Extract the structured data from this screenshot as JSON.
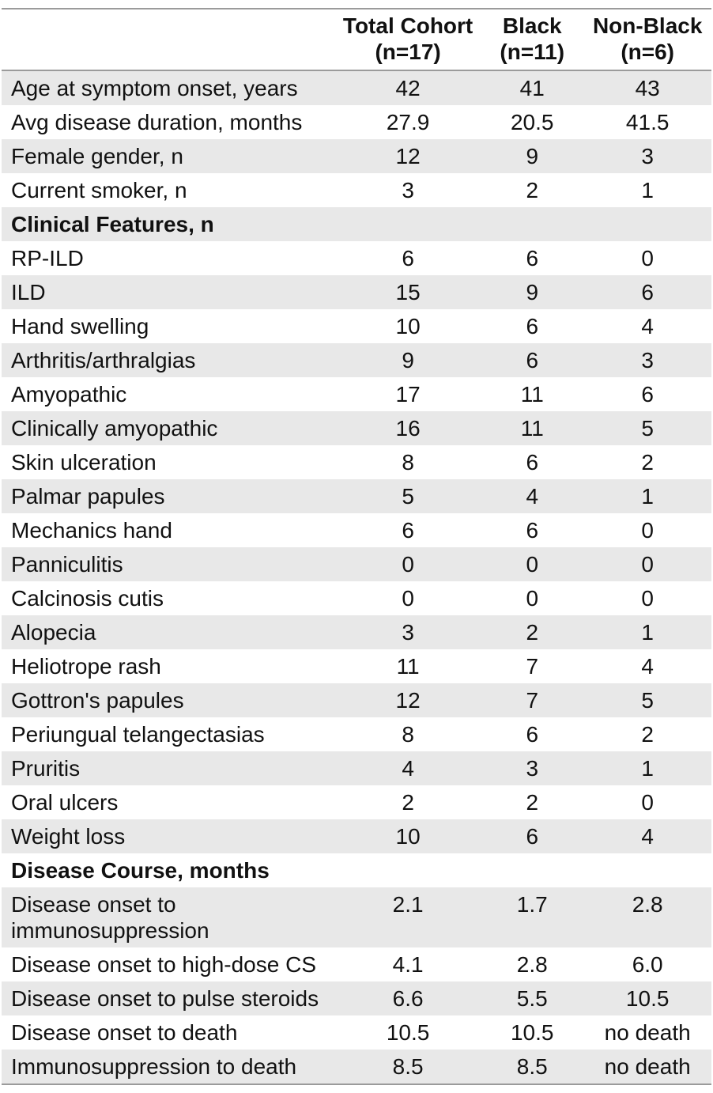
{
  "chart_data": {
    "type": "table",
    "columns": [
      {
        "line1": "",
        "line2": ""
      },
      {
        "line1": "Total Cohort",
        "line2": "(n=17)"
      },
      {
        "line1": "Black",
        "line2": "(n=11)"
      },
      {
        "line1": "Non-Black",
        "line2": "(n=6)"
      }
    ],
    "rows": [
      {
        "type": "data",
        "label": "Age at symptom onset, years",
        "values": [
          "42",
          "41",
          "43"
        ]
      },
      {
        "type": "data",
        "label": "Avg disease duration, months",
        "values": [
          "27.9",
          "20.5",
          "41.5"
        ]
      },
      {
        "type": "data",
        "label": "Female gender, n",
        "values": [
          "12",
          "9",
          "3"
        ]
      },
      {
        "type": "data",
        "label": "Current smoker, n",
        "values": [
          "3",
          "2",
          "1"
        ]
      },
      {
        "type": "section",
        "label": "Clinical Features, n",
        "values": [
          "",
          "",
          ""
        ]
      },
      {
        "type": "data",
        "label": "RP-ILD",
        "values": [
          "6",
          "6",
          "0"
        ]
      },
      {
        "type": "data",
        "label": "ILD",
        "values": [
          "15",
          "9",
          "6"
        ]
      },
      {
        "type": "data",
        "label": "Hand swelling",
        "values": [
          "10",
          "6",
          "4"
        ]
      },
      {
        "type": "data",
        "label": "Arthritis/arthralgias",
        "values": [
          "9",
          "6",
          "3"
        ]
      },
      {
        "type": "data",
        "label": "Amyopathic",
        "values": [
          "17",
          "11",
          "6"
        ]
      },
      {
        "type": "data",
        "label": "Clinically amyopathic",
        "values": [
          "16",
          "11",
          "5"
        ]
      },
      {
        "type": "data",
        "label": "Skin ulceration",
        "values": [
          "8",
          "6",
          "2"
        ]
      },
      {
        "type": "data",
        "label": "Palmar papules",
        "values": [
          "5",
          "4",
          "1"
        ]
      },
      {
        "type": "data",
        "label": "Mechanics hand",
        "values": [
          "6",
          "6",
          "0"
        ]
      },
      {
        "type": "data",
        "label": "Panniculitis",
        "values": [
          "0",
          "0",
          "0"
        ]
      },
      {
        "type": "data",
        "label": "Calcinosis cutis",
        "values": [
          "0",
          "0",
          "0"
        ]
      },
      {
        "type": "data",
        "label": "Alopecia",
        "values": [
          "3",
          "2",
          "1"
        ]
      },
      {
        "type": "data",
        "label": "Heliotrope rash",
        "values": [
          "11",
          "7",
          "4"
        ]
      },
      {
        "type": "data",
        "label": "Gottron's papules",
        "values": [
          "12",
          "7",
          "5"
        ]
      },
      {
        "type": "data",
        "label": "Periungual telangectasias",
        "values": [
          "8",
          "6",
          "2"
        ]
      },
      {
        "type": "data",
        "label": "Pruritis",
        "values": [
          "4",
          "3",
          "1"
        ]
      },
      {
        "type": "data",
        "label": "Oral ulcers",
        "values": [
          "2",
          "2",
          "0"
        ]
      },
      {
        "type": "data",
        "label": "Weight loss",
        "values": [
          "10",
          "6",
          "4"
        ]
      },
      {
        "type": "section",
        "label": "Disease Course, months",
        "values": [
          "",
          "",
          ""
        ]
      },
      {
        "type": "data",
        "label": "Disease onset to immunosuppression",
        "values": [
          "2.1",
          "1.7",
          "2.8"
        ]
      },
      {
        "type": "data",
        "label": "Disease onset to high-dose CS",
        "values": [
          "4.1",
          "2.8",
          "6.0"
        ]
      },
      {
        "type": "data",
        "label": "Disease onset to pulse steroids",
        "values": [
          "6.6",
          "5.5",
          "10.5"
        ]
      },
      {
        "type": "data",
        "label": "Disease onset to death",
        "values": [
          "10.5",
          "10.5",
          "no death"
        ]
      },
      {
        "type": "data",
        "label": "Immunosuppression to death",
        "values": [
          "8.5",
          "8.5",
          "no death"
        ]
      }
    ],
    "layout": {
      "row_alt_bg": "#e8e8e8",
      "row_bg": "#ffffff",
      "border_color": "#9b9b9b",
      "text_color": "#111111",
      "striping_starts_with": "gray"
    }
  }
}
